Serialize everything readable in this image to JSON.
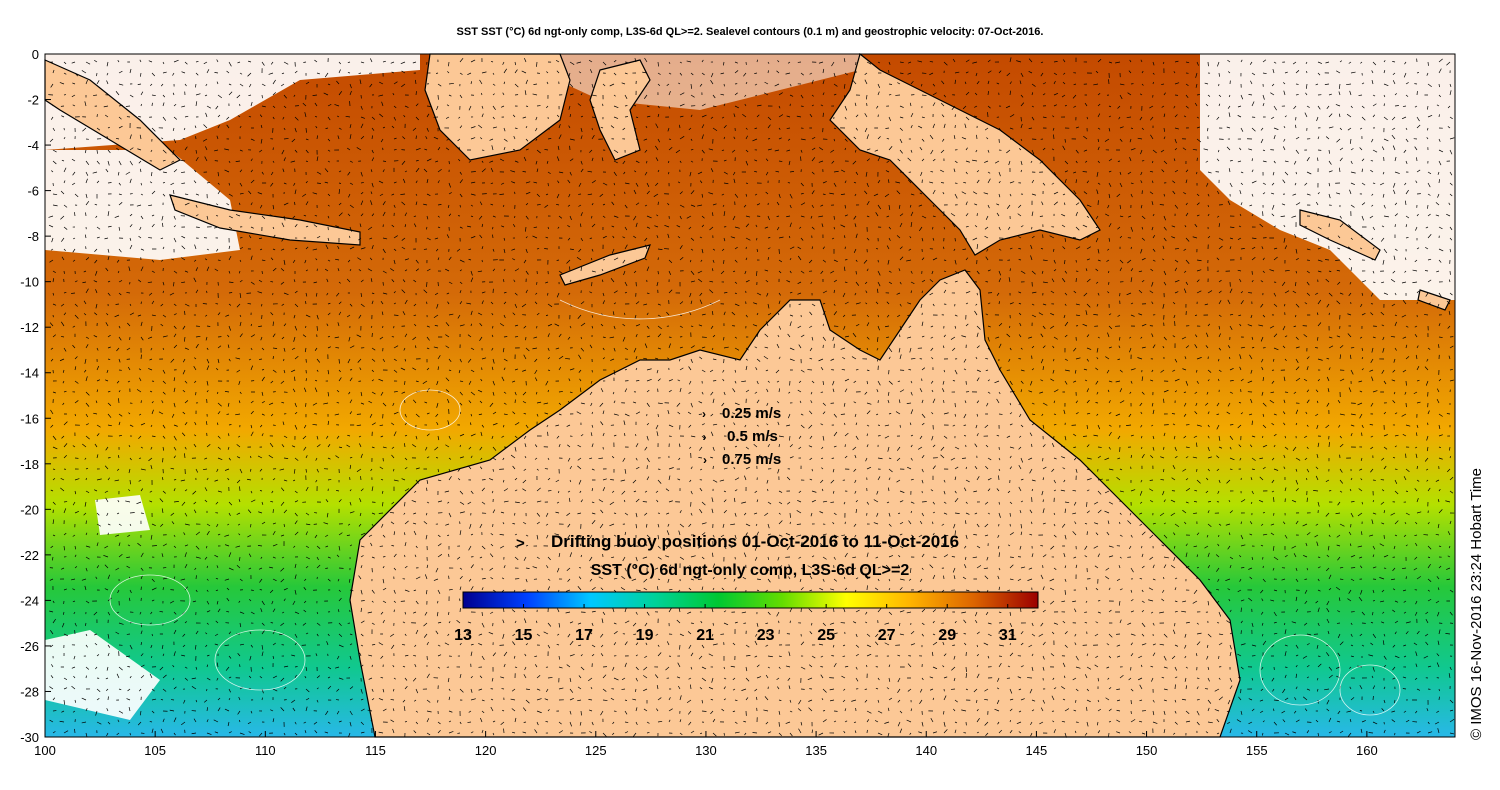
{
  "title": "SST SST (°C) 6d ngt-only comp, L3S-6d QL>=2. Sealevel contours (0.1 m) and geostrophic velocity: 07-Oct-2016.",
  "map": {
    "lon_range": [
      100,
      164
    ],
    "lat_range": [
      -30,
      0
    ],
    "x_ticks": [
      100,
      105,
      110,
      115,
      120,
      125,
      130,
      135,
      140,
      145,
      150,
      155,
      160
    ],
    "y_ticks": [
      0,
      -2,
      -4,
      -6,
      -8,
      -10,
      -12,
      -14,
      -16,
      -18,
      -20,
      -22,
      -24,
      -26,
      -28,
      -30
    ],
    "land_color": "#fcc896",
    "no_data_color": "#ffffff"
  },
  "velocity_legend": [
    {
      "label": "0.25 m/s",
      "glyph": "›"
    },
    {
      "label": "0.5 m/s",
      "glyph": "›"
    },
    {
      "label": "0.75 m/s",
      "glyph": "›"
    }
  ],
  "drifter": {
    "marker": ">",
    "marker_color": "#ff00ff",
    "label": "Drifting buoy positions 01-Oct-2016 to 11-Oct-2016"
  },
  "colorbar": {
    "title": "SST (°C) 6d ngt-only comp, L3S-6d QL>=2",
    "range": [
      13,
      32
    ],
    "tick_values": [
      13,
      15,
      17,
      19,
      21,
      23,
      25,
      27,
      29,
      31
    ],
    "colors": [
      "#00008f",
      "#0040ff",
      "#00c8ff",
      "#00d29a",
      "#00c832",
      "#64dc00",
      "#ffff00",
      "#ffb400",
      "#dc6400",
      "#9b0000"
    ]
  },
  "copyright": "© IMOS 16-Nov-2016 23:24 Hobart Time"
}
